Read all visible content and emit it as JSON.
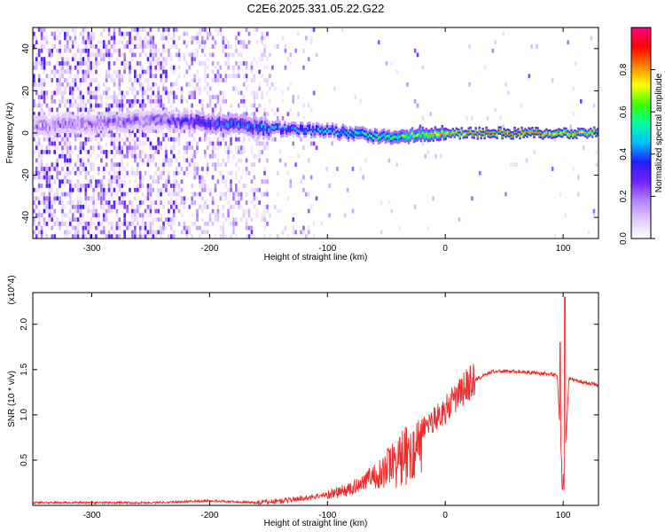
{
  "chart_data": [
    {
      "type": "heatmap",
      "title": "C2E6.2025.331.05.22.G22",
      "xlabel": "Height of straight line (km)",
      "ylabel": "Frequency (Hz)",
      "xlim": [
        -350,
        130
      ],
      "ylim": [
        -50,
        50
      ],
      "xticks": [
        -300,
        -200,
        -100,
        0,
        100
      ],
      "yticks": [
        -40,
        -20,
        0,
        20,
        40
      ],
      "colorbar": {
        "label": "Normalized spectral amplitude",
        "range": [
          0,
          1
        ],
        "ticks": [
          0.0,
          0.2,
          0.4,
          0.6,
          0.8
        ],
        "colormap": "rainbow-purple-red",
        "colors": [
          "#ffffff",
          "#e0c8ff",
          "#b080ff",
          "#7020ff",
          "#2020ff",
          "#00c0ff",
          "#00ffa0",
          "#40ff00",
          "#ffff00",
          "#ff8000",
          "#ff0000",
          "#ff0080"
        ]
      },
      "ridge": {
        "description_points_x": [
          -350,
          -250,
          -200,
          -150,
          -100,
          -50,
          0,
          50,
          100,
          130
        ],
        "frequency_center_hz": [
          3,
          6,
          5,
          2,
          1,
          -2,
          0,
          0,
          0,
          0
        ],
        "amplitude": [
          0.15,
          0.2,
          0.35,
          0.4,
          0.45,
          0.55,
          0.75,
          0.85,
          0.8,
          0.7
        ]
      }
    },
    {
      "type": "line",
      "xlabel": "Height of straight line (km)",
      "ylabel": "SNR (10 * v/v)",
      "y_multiplier": "(x10^4)",
      "xlim": [
        -350,
        130
      ],
      "ylim": [
        0,
        2.35
      ],
      "xticks": [
        -300,
        -200,
        -100,
        0,
        100
      ],
      "yticks": [
        0.5,
        1.0,
        1.5,
        2.0
      ],
      "ytick_labels": [
        "0.5",
        "1.0",
        "1.5",
        "2.0"
      ],
      "color": "#ee2b2b",
      "x": [
        -350,
        -300,
        -250,
        -200,
        -160,
        -140,
        -120,
        -100,
        -80,
        -60,
        -40,
        -20,
        0,
        20,
        40,
        60,
        80,
        95,
        100,
        105,
        110,
        130
      ],
      "y": [
        0.03,
        0.03,
        0.03,
        0.05,
        0.03,
        0.05,
        0.08,
        0.12,
        0.18,
        0.35,
        0.6,
        0.85,
        1.05,
        1.35,
        1.48,
        1.48,
        1.46,
        1.44,
        0.15,
        1.4,
        1.38,
        1.33
      ]
    }
  ]
}
